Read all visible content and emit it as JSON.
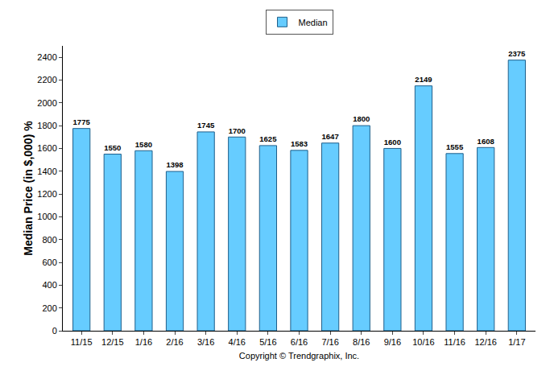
{
  "chart_data": {
    "type": "bar",
    "ylabel": "Median Price (in $,000) %",
    "xlabel": "Copyright © Trendgraphix, Inc.",
    "categories": [
      "11/15",
      "12/15",
      "1/16",
      "2/16",
      "3/16",
      "4/16",
      "5/16",
      "6/16",
      "7/16",
      "8/16",
      "9/16",
      "10/16",
      "11/16",
      "12/16",
      "1/17"
    ],
    "series": [
      {
        "name": "Median",
        "color": "#66ccff",
        "values": [
          1775,
          1550,
          1580,
          1398,
          1745,
          1700,
          1625,
          1583,
          1647,
          1800,
          1600,
          2149,
          1555,
          1608,
          2375
        ]
      }
    ],
    "ylim": [
      0,
      2500
    ],
    "yticks": [
      0,
      200,
      400,
      600,
      800,
      1000,
      1200,
      1400,
      1600,
      1800,
      2000,
      2200,
      2400
    ],
    "grid": false,
    "legend": "top",
    "data_labels": true
  }
}
